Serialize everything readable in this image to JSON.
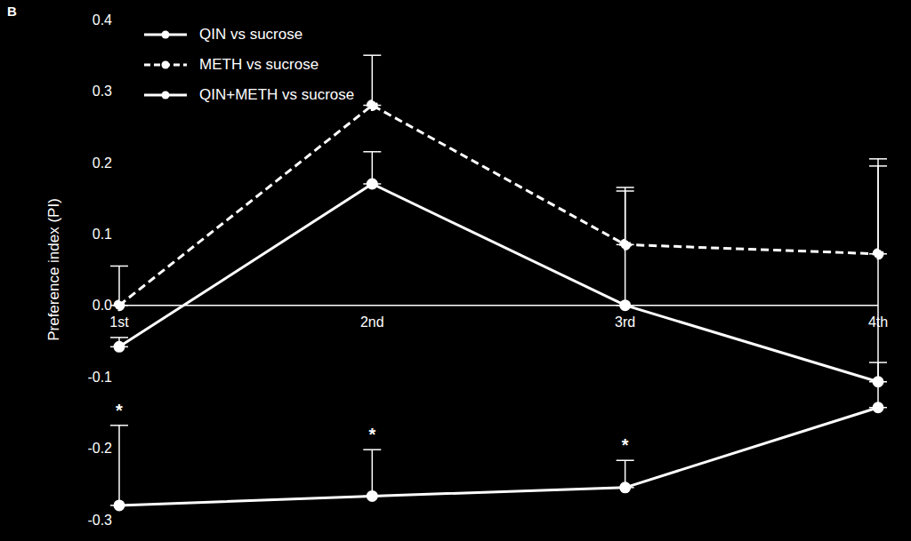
{
  "chart_data": {
    "type": "line",
    "title": "B",
    "y_label": "Preference index (PI)",
    "categories": [
      "1st",
      "2nd",
      "3rd",
      "4th"
    ],
    "ylim": [
      -0.3,
      0.4
    ],
    "yticks": [
      {
        "value": -0.3,
        "label": "-0.3"
      },
      {
        "value": -0.2,
        "label": "-0.2"
      },
      {
        "value": -0.1,
        "label": "-0.1"
      },
      {
        "value": 0,
        "label": "0.0"
      },
      {
        "value": 0.1,
        "label": "0.1"
      },
      {
        "value": 0.2,
        "label": "0.2"
      },
      {
        "value": 0.3,
        "label": "0.3"
      },
      {
        "value": 0.4,
        "label": "0.4"
      }
    ],
    "grid": false,
    "legend": "top-left",
    "series": [
      {
        "name": "QIN vs sucrose",
        "color": "#ffffff",
        "line_style": "solid",
        "marker": "circle",
        "values": [
          -0.28,
          -0.267,
          -0.255,
          -0.143
        ],
        "error_upper": [
          0.112,
          0.065,
          0.038,
          0.063
        ],
        "annotations": [
          "*",
          "*",
          "*",
          null
        ]
      },
      {
        "name": "METH vs sucrose",
        "color": "#ffffff",
        "line_style": "dashed",
        "marker": "circle",
        "values": [
          0.0,
          0.28,
          0.085,
          0.072
        ],
        "error_upper": [
          0.055,
          0.07,
          0.08,
          0.133
        ]
      },
      {
        "name": "QIN+METH vs sucrose",
        "color": "#ffffff",
        "line_style": "solid",
        "marker": "circle",
        "values": [
          -0.058,
          0.17,
          0.0,
          -0.107
        ],
        "error_upper": [
          0.013,
          0.045,
          0.16,
          0.302
        ]
      }
    ]
  }
}
